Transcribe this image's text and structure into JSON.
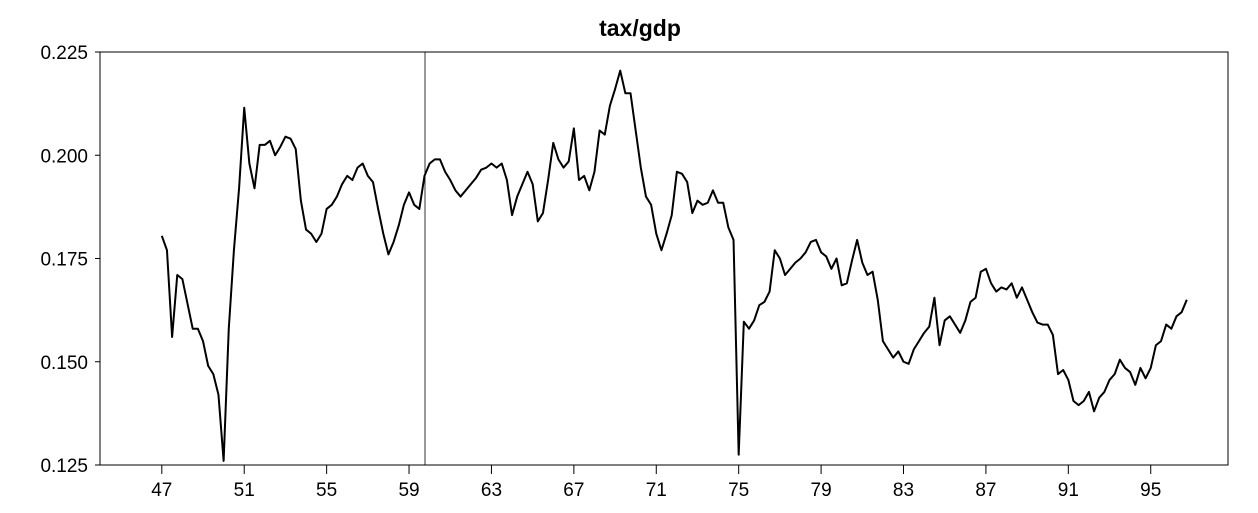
{
  "chart_data": {
    "type": "line",
    "title": "tax/gdp",
    "x": [
      47,
      47.25,
      47.5,
      47.75,
      48,
      48.25,
      48.5,
      48.75,
      49,
      49.25,
      49.5,
      49.75,
      50,
      50.25,
      50.5,
      50.75,
      51,
      51.25,
      51.5,
      51.75,
      52,
      52.25,
      52.5,
      52.75,
      53,
      53.25,
      53.5,
      53.75,
      54,
      54.25,
      54.5,
      54.75,
      55,
      55.25,
      55.5,
      55.75,
      56,
      56.25,
      56.5,
      56.75,
      57,
      57.25,
      57.5,
      57.75,
      58,
      58.25,
      58.5,
      58.75,
      59,
      59.25,
      59.5,
      59.75,
      60,
      60.25,
      60.5,
      60.75,
      61,
      61.25,
      61.5,
      61.75,
      62,
      62.25,
      62.5,
      62.75,
      63,
      63.25,
      63.5,
      63.75,
      64,
      64.25,
      64.5,
      64.75,
      65,
      65.25,
      65.5,
      65.75,
      66,
      66.25,
      66.5,
      66.75,
      67,
      67.25,
      67.5,
      67.75,
      68,
      68.25,
      68.5,
      68.75,
      69,
      69.25,
      69.5,
      69.75,
      70,
      70.25,
      70.5,
      70.75,
      71,
      71.25,
      71.5,
      71.75,
      72,
      72.25,
      72.5,
      72.75,
      73,
      73.25,
      73.5,
      73.75,
      74,
      74.25,
      74.5,
      74.75,
      75,
      75.25,
      75.5,
      75.75,
      76,
      76.25,
      76.5,
      76.75,
      77,
      77.25,
      77.5,
      77.75,
      78,
      78.25,
      78.5,
      78.75,
      79,
      79.25,
      79.5,
      79.75,
      80,
      80.25,
      80.5,
      80.75,
      81,
      81.25,
      81.5,
      81.75,
      82,
      82.25,
      82.5,
      82.75,
      83,
      83.25,
      83.5,
      83.75,
      84,
      84.25,
      84.5,
      84.75,
      85,
      85.25,
      85.5,
      85.75,
      86,
      86.25,
      86.5,
      86.75,
      87,
      87.25,
      87.5,
      87.75,
      88,
      88.25,
      88.5,
      88.75,
      89,
      89.25,
      89.5,
      89.75,
      90,
      90.25,
      90.5,
      90.75,
      91,
      91.25,
      91.5,
      91.75,
      92,
      92.25,
      92.5,
      92.75,
      93,
      93.25,
      93.5,
      93.75,
      94,
      94.25,
      94.5,
      94.75,
      95,
      95.25,
      95.5,
      95.75,
      96,
      96.25,
      96.5,
      96.75
    ],
    "series": [
      {
        "color": "#000000",
        "values": [
          0.1805,
          0.177,
          0.156,
          0.171,
          0.17,
          0.164,
          0.158,
          0.158,
          0.155,
          0.149,
          0.147,
          0.142,
          0.126,
          0.158,
          0.177,
          0.192,
          0.2115,
          0.198,
          0.192,
          0.2025,
          0.2025,
          0.2035,
          0.2,
          0.202,
          0.2045,
          0.204,
          0.2015,
          0.189,
          0.182,
          0.181,
          0.179,
          0.181,
          0.187,
          0.188,
          0.19,
          0.193,
          0.195,
          0.194,
          0.197,
          0.198,
          0.195,
          0.1935,
          0.187,
          0.181,
          0.176,
          0.179,
          0.183,
          0.188,
          0.191,
          0.188,
          0.187,
          0.195,
          0.198,
          0.199,
          0.199,
          0.196,
          0.194,
          0.1915,
          0.19,
          0.1915,
          0.193,
          0.1945,
          0.1965,
          0.197,
          0.198,
          0.197,
          0.198,
          0.194,
          0.1855,
          0.19,
          0.193,
          0.196,
          0.193,
          0.184,
          0.186,
          0.194,
          0.203,
          0.199,
          0.197,
          0.1985,
          0.2065,
          0.194,
          0.195,
          0.1915,
          0.196,
          0.206,
          0.205,
          0.212,
          0.216,
          0.2205,
          0.215,
          0.215,
          0.206,
          0.197,
          0.19,
          0.188,
          0.181,
          0.177,
          0.181,
          0.1855,
          0.196,
          0.1955,
          0.1935,
          0.186,
          0.189,
          0.188,
          0.1885,
          0.1915,
          0.1885,
          0.1885,
          0.1825,
          0.1795,
          0.1275,
          0.1597,
          0.158,
          0.16,
          0.1637,
          0.1645,
          0.167,
          0.177,
          0.175,
          0.171,
          0.1725,
          0.174,
          0.175,
          0.1765,
          0.179,
          0.1795,
          0.1765,
          0.1755,
          0.1725,
          0.175,
          0.1685,
          0.169,
          0.1745,
          0.1795,
          0.174,
          0.171,
          0.1718,
          0.165,
          0.155,
          0.153,
          0.151,
          0.1525,
          0.15,
          0.1495,
          0.153,
          0.155,
          0.157,
          0.1585,
          0.1655,
          0.154,
          0.16,
          0.161,
          0.159,
          0.157,
          0.16,
          0.1645,
          0.1655,
          0.1718,
          0.1725,
          0.169,
          0.167,
          0.168,
          0.1675,
          0.169,
          0.1655,
          0.168,
          0.165,
          0.162,
          0.1595,
          0.159,
          0.159,
          0.1565,
          0.147,
          0.148,
          0.1456,
          0.1405,
          0.1395,
          0.1405,
          0.1427,
          0.138,
          0.1413,
          0.1427,
          0.1456,
          0.147,
          0.1505,
          0.1485,
          0.1475,
          0.1444,
          0.1485,
          0.146,
          0.1485,
          0.154,
          0.155,
          0.159,
          0.158,
          0.161,
          0.162,
          0.165
        ]
      }
    ],
    "xlim": [
      44,
      98.75
    ],
    "xticks": [
      47,
      51,
      55,
      59,
      63,
      67,
      71,
      75,
      79,
      83,
      87,
      91,
      95
    ],
    "ylim": [
      0.125,
      0.225
    ],
    "yticks": [
      0.225,
      {
        "value": 0.2,
        "label": "0.200"
      },
      0.175,
      {
        "value": 0.15,
        "label": "0.150"
      },
      0.125
    ]
  }
}
